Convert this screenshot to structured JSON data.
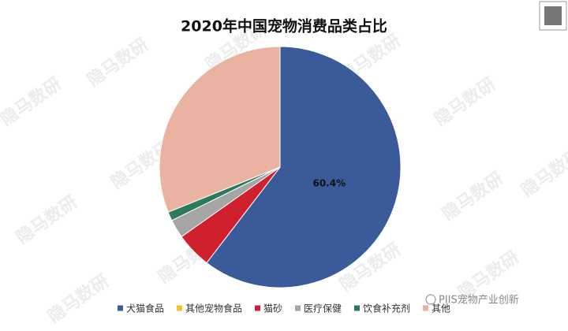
{
  "chart_data": {
    "type": "pie",
    "title": "2020年中国宠物消费品类占比",
    "categories": [
      "犬猫食品",
      "其他宠物食品",
      "猫砂",
      "医疗保健",
      "饮食补充剂",
      "其他"
    ],
    "values": [
      60.4,
      0,
      4.8,
      2.5,
      1.2,
      31.1
    ],
    "value_labels": [
      "60.4%",
      null,
      null,
      null,
      null,
      null
    ],
    "colors": [
      "#3b5a99",
      "#f2c12e",
      "#d0202e",
      "#a5a5a5",
      "#2c7a5c",
      "#e9b2a1"
    ],
    "legend": "bottom"
  },
  "watermark": "隐马数研",
  "source": "PIIS宠物产业创新"
}
